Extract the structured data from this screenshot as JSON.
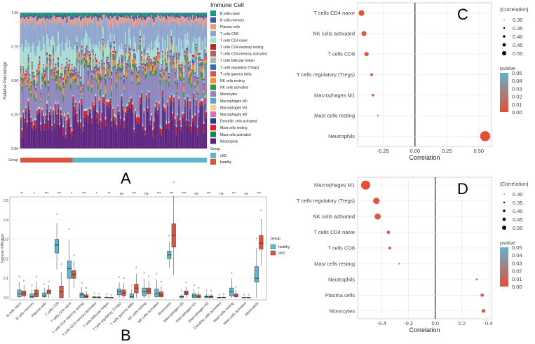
{
  "panels": {
    "A": "A",
    "B": "B",
    "C": "C",
    "D": "D"
  },
  "chart_data": [
    {
      "id": "A",
      "type": "bar",
      "subtype": "stacked-100",
      "ylabel": "Relative Percentage",
      "yticks": [
        "0.00",
        "0.25",
        "0.50",
        "0.75",
        "1.00"
      ],
      "ylim": [
        0,
        1
      ],
      "legend_title": "Immune Cell",
      "series": [
        {
          "name": "B cells naive",
          "color": "#16967a",
          "mean": 0.02
        },
        {
          "name": "B cells memory",
          "color": "#3d5aa3",
          "mean": 0.02
        },
        {
          "name": "Plasma cells",
          "color": "#e89b89",
          "mean": 0.04
        },
        {
          "name": "T cells CD8",
          "color": "#8ea5cd",
          "mean": 0.16
        },
        {
          "name": "T cells CD4 naive",
          "color": "#a6dcd6",
          "mean": 0.11
        },
        {
          "name": "T cells CD4 memory resting",
          "color": "#b8292b",
          "mean": 0.01
        },
        {
          "name": "T cells CD4 memory activated",
          "color": "#a46a57",
          "mean": 0.005
        },
        {
          "name": "T cells follicular helper",
          "color": "#b1b1b1",
          "mean": 0.01
        },
        {
          "name": "T cells regulatory (Tregs)",
          "color": "#2f6fb5",
          "mean": 0.02
        },
        {
          "name": "T cells gamma delta",
          "color": "#d9574a",
          "mean": 0.02
        },
        {
          "name": "NK cells resting",
          "color": "#ec9839",
          "mean": 0.03
        },
        {
          "name": "NK cells activated",
          "color": "#3f9048",
          "mean": 0.03
        },
        {
          "name": "Monocytes",
          "color": "#8d86bd",
          "mean": 0.25
        },
        {
          "name": "Macrophages M0",
          "color": "#5aa5d6",
          "mean": 0.015
        },
        {
          "name": "Macrophages M1",
          "color": "#f4d08f",
          "mean": 0.01
        },
        {
          "name": "Macrophages M2",
          "color": "#d76fb2",
          "mean": 0.005
        },
        {
          "name": "Dendritic cells activated",
          "color": "#2a3d8f",
          "mean": 0.005
        },
        {
          "name": "Mast cells resting",
          "color": "#e21d26",
          "mean": 0.03
        },
        {
          "name": "Mast cells activated",
          "color": "#1b8449",
          "mean": 0.005
        },
        {
          "name": "Neutrophils",
          "color": "#5e2480",
          "mean": 0.2
        }
      ],
      "group_label": "Group",
      "group_legend_title": "Group",
      "groups": [
        {
          "name": "cKD",
          "color": "#5bb8cf",
          "fraction": 0.72
        },
        {
          "name": "healthy",
          "color": "#d9553f",
          "fraction": 0.28
        }
      ]
    },
    {
      "id": "B",
      "type": "box",
      "ylabel": "Immune Infiltration",
      "yticks": [
        "0.0",
        "0.1",
        "0.2",
        "0.3",
        "0.4",
        "0.5"
      ],
      "ylim": [
        0,
        0.5
      ],
      "categories": [
        "B cells naive",
        "B cells memory",
        "Plasma cells",
        "T cells CD8",
        "T cells CD4 naive",
        "T cells CD4 memory resting",
        "T cells CD4 memory activated",
        "T cells follicular helper",
        "T cells regulatory (Tregs)",
        "T cells gamma delta",
        "NK cells resting",
        "NK cells activated",
        "Monocytes",
        "Macrophages M0",
        "Macrophages M1",
        "Macrophages M2",
        "Dendritic cells activated",
        "Mast cells resting",
        "Mast cells activated",
        "Neutrophils"
      ],
      "significance": [
        "**",
        "*",
        "***",
        "***",
        "*",
        "***",
        "*",
        "**",
        "ns",
        "***",
        "ns",
        "***",
        "***",
        "***",
        "ns",
        "***",
        "ns",
        "***",
        "ns",
        "***"
      ],
      "legend_title": "Group",
      "series": [
        {
          "name": "healthy",
          "color": "#5bb8cf",
          "medians": [
            0.02,
            0.005,
            0.01,
            0.27,
            0.15,
            0.015,
            0.001,
            0.001,
            0.03,
            0.005,
            0.03,
            0.02,
            0.22,
            0.005,
            0.01,
            0.005,
            0.001,
            0.03,
            0.001,
            0.1
          ],
          "q1": [
            0.005,
            0.0,
            0.005,
            0.23,
            0.1,
            0.0,
            0.0,
            0.0,
            0.015,
            0.0,
            0.01,
            0.005,
            0.2,
            0.0,
            0.0,
            0.0,
            0.0,
            0.01,
            0.0,
            0.08
          ],
          "q3": [
            0.04,
            0.02,
            0.025,
            0.3,
            0.19,
            0.025,
            0.005,
            0.003,
            0.045,
            0.02,
            0.05,
            0.045,
            0.24,
            0.01,
            0.02,
            0.01,
            0.002,
            0.05,
            0.002,
            0.16
          ]
        },
        {
          "name": "cKD",
          "color": "#d9553f",
          "medians": [
            0.02,
            0.02,
            0.03,
            0.03,
            0.12,
            0.005,
            0.001,
            0.001,
            0.025,
            0.05,
            0.035,
            0.015,
            0.32,
            0.025,
            0.005,
            0.005,
            0.001,
            0.01,
            0.001,
            0.28
          ],
          "q1": [
            0.01,
            0.005,
            0.02,
            0.0,
            0.1,
            0.0,
            0.0,
            0.0,
            0.01,
            0.025,
            0.02,
            0.005,
            0.26,
            0.015,
            0.0,
            0.0,
            0.0,
            0.005,
            0.0,
            0.25
          ],
          "q3": [
            0.035,
            0.04,
            0.04,
            0.06,
            0.14,
            0.015,
            0.004,
            0.002,
            0.04,
            0.07,
            0.05,
            0.03,
            0.38,
            0.035,
            0.015,
            0.01,
            0.003,
            0.02,
            0.002,
            0.32
          ]
        }
      ]
    },
    {
      "id": "C",
      "type": "scatter",
      "subtype": "lollipop",
      "xlabel": "Correlation",
      "xticks": [
        "-0.25",
        "0.00",
        "0.25",
        "0.50"
      ],
      "xtick_values": [
        -0.25,
        0,
        0.25,
        0.5
      ],
      "xlim": [
        -0.45,
        0.6
      ],
      "categories": [
        "T cells CD4 naive",
        "NK cells activated",
        "T cells CD8",
        "T cells regulatory (Tregs)",
        "Macrophages M1",
        "Mast cells resting",
        "Neutrophils"
      ],
      "values": [
        -0.42,
        -0.4,
        -0.38,
        -0.34,
        -0.33,
        -0.29,
        0.55
      ],
      "pvalues": [
        0.001,
        0.002,
        0.004,
        0.01,
        0.012,
        0.02,
        0.0
      ],
      "size_legend_title": "|Correlation|",
      "size_legend": [
        "0.30",
        "0.35",
        "0.40",
        "0.45",
        "0.50"
      ],
      "color_legend_title": "pvalue",
      "color_legend": [
        "0.05",
        "0.04",
        "0.03",
        "0.02",
        "0.01",
        "0.00"
      ]
    },
    {
      "id": "D",
      "type": "scatter",
      "subtype": "lollipop",
      "xlabel": "Correlation",
      "xticks": [
        "-0.4",
        "-0.2",
        "0.0",
        "0.2",
        "0.4"
      ],
      "xtick_values": [
        -0.4,
        -0.2,
        0,
        0.2,
        0.4
      ],
      "xlim": [
        -0.58,
        0.42
      ],
      "categories": [
        "Macrophages M1",
        "T cells regulatory (Tregs)",
        "NK cells activated",
        "T cells CD4 naive",
        "T cells CD8",
        "Mast cells resting",
        "Neutrophils",
        "Plasma cells",
        "Monocytes"
      ],
      "values": [
        -0.52,
        -0.44,
        -0.43,
        -0.35,
        -0.34,
        -0.27,
        0.31,
        0.35,
        0.36
      ],
      "pvalues": [
        0.0,
        0.004,
        0.005,
        0.01,
        0.012,
        0.02,
        0.015,
        0.006,
        0.004
      ],
      "size_legend_title": "|Correlation|",
      "size_legend": [
        "0.30",
        "0.35",
        "0.40",
        "0.45",
        "0.50"
      ],
      "color_legend_title": "pvalue",
      "color_legend": [
        "0.05",
        "0.04",
        "0.03",
        "0.02",
        "0.01",
        "0.00"
      ]
    }
  ]
}
